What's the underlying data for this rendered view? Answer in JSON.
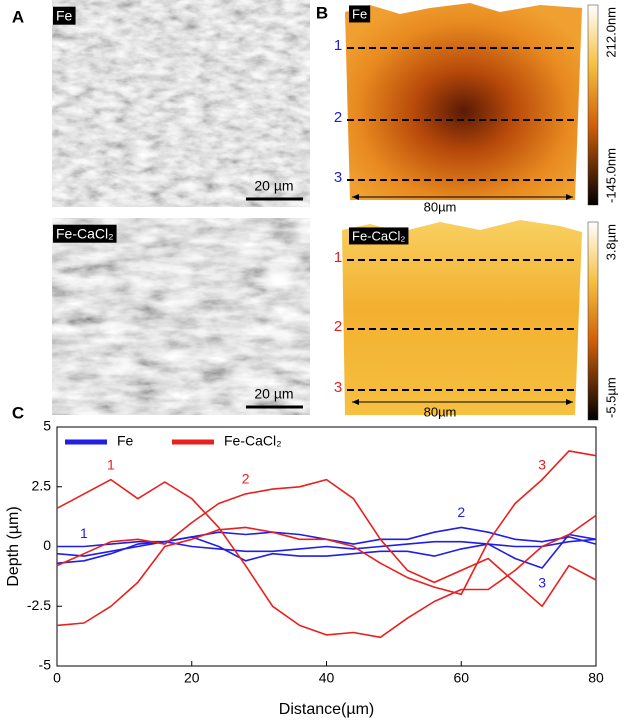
{
  "panel_labels": [
    "A",
    "B",
    "C"
  ],
  "panel_a": {
    "images": [
      {
        "label": "Fe",
        "scale_bar": "20 µm"
      },
      {
        "label": "Fe-CaCl₂",
        "scale_bar": "20 µm"
      }
    ]
  },
  "panel_b": {
    "images": [
      {
        "label": "Fe",
        "line_labels": [
          "1",
          "2",
          "3"
        ],
        "width_label": "80µm",
        "colorbar": {
          "max": "212.0nm",
          "min": "-145.0nm"
        }
      },
      {
        "label": "Fe-CaCl₂",
        "line_labels": [
          "1",
          "2",
          "3"
        ],
        "width_label": "80µm",
        "colorbar": {
          "max": "3.8µm",
          "min": "-5.5µm"
        }
      }
    ]
  },
  "chart_data": {
    "type": "line",
    "xlabel": "Distance(µm)",
    "ylabel": "Depth (µm)",
    "xlim": [
      0,
      80
    ],
    "ylim": [
      -5,
      5
    ],
    "xticks": [
      0,
      20,
      40,
      60,
      80
    ],
    "yticks": [
      -5,
      -2.5,
      0,
      2.5,
      5
    ],
    "x": [
      0,
      4,
      8,
      12,
      16,
      20,
      24,
      28,
      32,
      36,
      40,
      44,
      48,
      52,
      56,
      60,
      64,
      68,
      72,
      76,
      80
    ],
    "series": [
      {
        "name": "Fe",
        "color": "#1f1fe6",
        "lines": [
          {
            "label": "1",
            "values": [
              0.0,
              0.0,
              0.1,
              0.2,
              0.2,
              0.0,
              -0.1,
              -0.2,
              -0.2,
              -0.1,
              0.0,
              -0.1,
              0.0,
              0.1,
              0.2,
              0.2,
              0.1,
              0.0,
              0.0,
              0.2,
              0.3
            ]
          },
          {
            "label": "2",
            "values": [
              -0.3,
              -0.4,
              -0.2,
              0.0,
              0.2,
              0.4,
              0.6,
              0.5,
              0.6,
              0.5,
              0.3,
              0.1,
              0.3,
              0.3,
              0.6,
              0.8,
              0.6,
              0.3,
              0.2,
              0.4,
              0.1
            ]
          },
          {
            "label": "3",
            "values": [
              -0.7,
              -0.6,
              -0.3,
              0.1,
              0.2,
              0.4,
              0.0,
              -0.6,
              -0.3,
              -0.4,
              -0.4,
              -0.3,
              -0.2,
              -0.2,
              -0.4,
              -0.1,
              0.1,
              -0.5,
              -0.9,
              0.5,
              0.3
            ]
          }
        ]
      },
      {
        "name": "Fe-CaCl₂",
        "color": "#e8201e",
        "lines": [
          {
            "label": "1",
            "values": [
              1.6,
              2.2,
              2.8,
              2.0,
              2.7,
              2.0,
              0.8,
              -0.8,
              -2.5,
              -3.3,
              -3.7,
              -3.6,
              -3.8,
              -3.0,
              -2.3,
              -1.8,
              -1.8,
              -1.0,
              0.0,
              0.5,
              1.3
            ]
          },
          {
            "label": "2",
            "values": [
              -0.8,
              -0.3,
              0.2,
              0.3,
              0.1,
              1.0,
              1.8,
              2.2,
              2.4,
              2.5,
              2.8,
              2.0,
              0.3,
              -1.0,
              -1.5,
              -1.0,
              -0.5,
              -1.5,
              -2.5,
              -0.8,
              -1.4
            ]
          },
          {
            "label": "3",
            "values": [
              -3.3,
              -3.2,
              -2.5,
              -1.5,
              0.0,
              0.3,
              0.7,
              0.8,
              0.6,
              0.3,
              0.3,
              0.0,
              -0.7,
              -1.3,
              -1.7,
              -2.0,
              0.2,
              1.8,
              2.8,
              4.0,
              3.8
            ]
          }
        ]
      }
    ]
  }
}
